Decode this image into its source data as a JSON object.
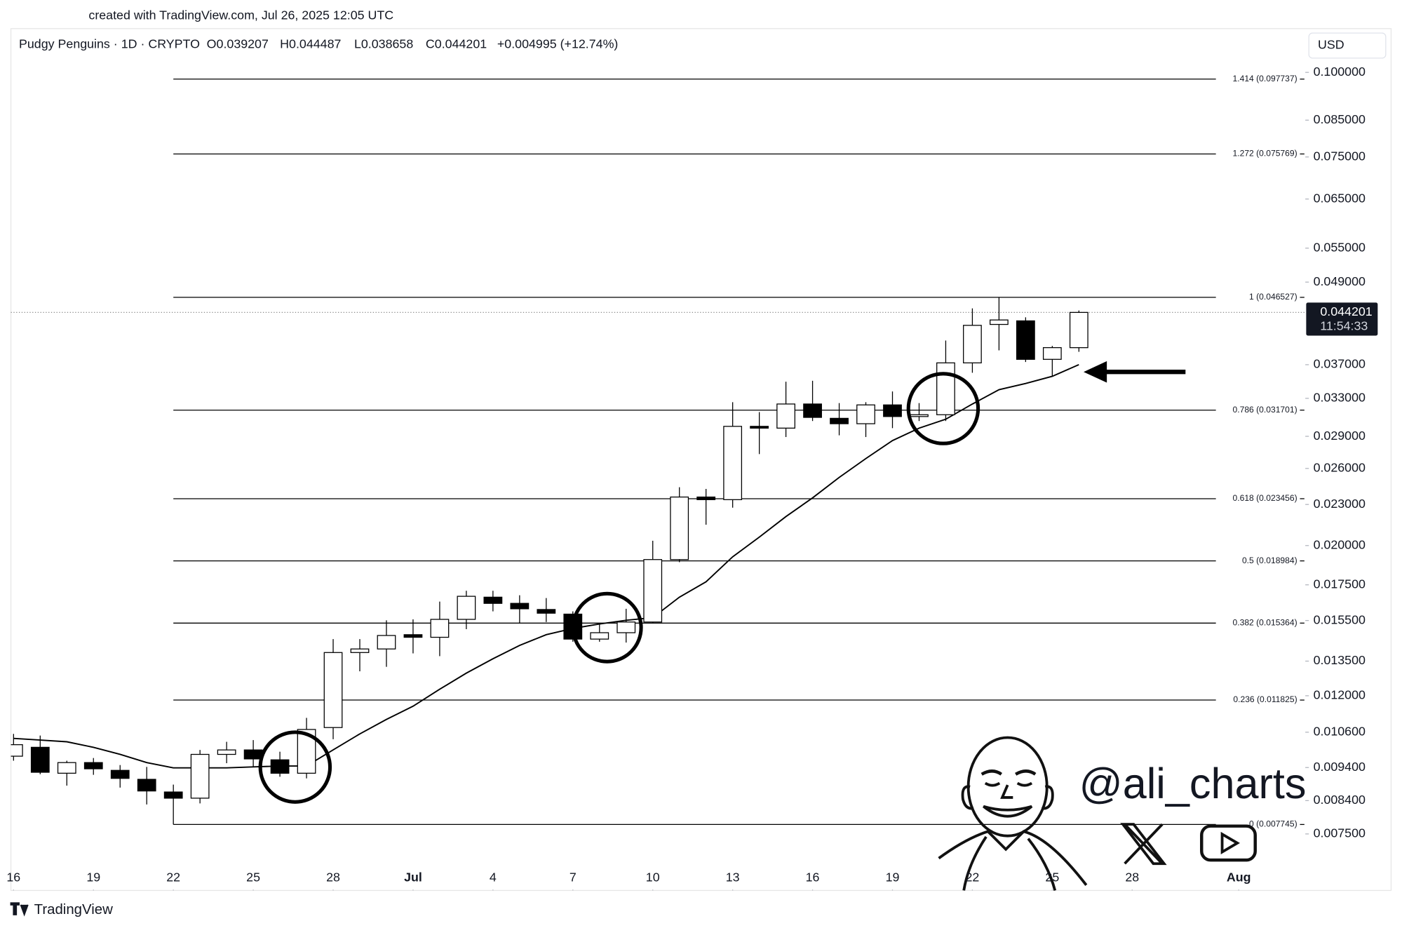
{
  "header": {
    "created": "created with TradingView.com, Jul 26, 2025 12:05 UTC"
  },
  "footer": {
    "brand": "TradingView"
  },
  "chart_data": {
    "type": "candlestick",
    "title": "Pudgy Penguins · 1D · CRYPTO",
    "ohlc_legend": [
      "O0.039207",
      "H0.044487",
      "L0.038658",
      "C0.044201",
      "+0.004995 (+12.74%)"
    ],
    "currency": "USD",
    "x": [
      0,
      1,
      2,
      3,
      4,
      5,
      6,
      7,
      8,
      9,
      10,
      11,
      12,
      13,
      14,
      15,
      16,
      17,
      18,
      19,
      20,
      21,
      22,
      23,
      24,
      25,
      26,
      27,
      28,
      29,
      30,
      31,
      32,
      33,
      34,
      35,
      36,
      37,
      38,
      39,
      40
    ],
    "open": [
      0.00977,
      0.01007,
      0.00922,
      0.00956,
      0.00931,
      0.00903,
      0.00865,
      0.00847,
      0.00983,
      0.00998,
      0.00965,
      0.00922,
      0.01077,
      0.0139,
      0.01407,
      0.01477,
      0.01464,
      0.01556,
      0.01678,
      0.01643,
      0.01609,
      0.01584,
      0.01455,
      0.01487,
      0.01542,
      0.01907,
      0.02359,
      0.02338,
      0.03,
      0.02982,
      0.03237,
      0.03083,
      0.03027,
      0.03227,
      0.03102,
      0.03121,
      0.03723,
      0.04243,
      0.04295,
      0.03768,
      0.039207
    ],
    "high": [
      0.01054,
      0.01048,
      0.00962,
      0.00971,
      0.00948,
      0.00942,
      0.00887,
      0.00998,
      0.01026,
      0.01032,
      0.00992,
      0.01113,
      0.01455,
      0.01455,
      0.01551,
      0.01556,
      0.01653,
      0.01715,
      0.01715,
      0.01689,
      0.01673,
      0.01599,
      0.01537,
      0.01613,
      0.02033,
      0.02439,
      0.02425,
      0.03257,
      0.03149,
      0.03492,
      0.03503,
      0.03247,
      0.03257,
      0.03378,
      0.03247,
      0.04017,
      0.04481,
      0.04653,
      0.04347,
      0.03944,
      0.044487
    ],
    "low": [
      0.00962,
      0.00919,
      0.00884,
      0.00917,
      0.00878,
      0.00829,
      0.007745,
      0.00832,
      0.00954,
      0.00942,
      0.00911,
      0.00906,
      0.01035,
      0.01304,
      0.01324,
      0.01386,
      0.01373,
      0.01505,
      0.01599,
      0.01537,
      0.01542,
      0.01442,
      0.01442,
      0.01438,
      0.01537,
      0.0189,
      0.02147,
      0.02275,
      0.0273,
      0.02893,
      0.03055,
      0.0291,
      0.02893,
      0.02982,
      0.03055,
      0.03055,
      0.036,
      0.03885,
      0.03734,
      0.03557,
      0.038658
    ],
    "close": [
      0.01016,
      0.00925,
      0.00956,
      0.00936,
      0.00906,
      0.00868,
      0.00847,
      0.00983,
      0.00998,
      0.00968,
      0.00922,
      0.0107,
      0.0139,
      0.01407,
      0.01473,
      0.01464,
      0.01556,
      0.01683,
      0.01643,
      0.01613,
      0.01589,
      0.01455,
      0.01487,
      0.01542,
      0.01907,
      0.02359,
      0.02338,
      0.03,
      0.02982,
      0.03237,
      0.03093,
      0.03027,
      0.03227,
      0.03102,
      0.03121,
      0.03723,
      0.0423,
      0.04308,
      0.03768,
      0.03921,
      0.044201
    ],
    "up_color": "#ffffff",
    "down_color": "#000000",
    "wick_color": "#000000",
    "ma": {
      "color": "#000000",
      "values": [
        0.01038,
        0.01032,
        0.01026,
        0.01007,
        0.00983,
        0.00956,
        0.00939,
        0.00939,
        0.00939,
        0.00942,
        0.00945,
        0.00945,
        0.00998,
        0.01054,
        0.01107,
        0.01158,
        0.01227,
        0.01296,
        0.01361,
        0.01424,
        0.01477,
        0.01509,
        0.01532,
        0.01551,
        0.01565,
        0.01678,
        0.01768,
        0.01925,
        0.02058,
        0.02207,
        0.02352,
        0.02522,
        0.02689,
        0.02858,
        0.02982,
        0.03074,
        0.03237,
        0.03398,
        0.03471,
        0.03557,
        0.037
      ]
    },
    "fib_levels": [
      {
        "value": 0.097737,
        "label": "1.414 (0.097737)"
      },
      {
        "value": 0.075769,
        "label": "1.272 (0.075769)"
      },
      {
        "value": 0.046527,
        "label": "1 (0.046527)"
      },
      {
        "value": 0.031701,
        "label": "0.786 (0.031701)"
      },
      {
        "value": 0.023456,
        "label": "0.618 (0.023456)"
      },
      {
        "value": 0.018984,
        "label": "0.5 (0.018984)"
      },
      {
        "value": 0.015364,
        "label": "0.382 (0.015364)"
      },
      {
        "value": 0.011825,
        "label": "0.236 (0.011825)"
      },
      {
        "value": 0.007745,
        "label": "0 (0.007745)"
      }
    ],
    "last_price": 0.044201,
    "countdown": "11:54:33",
    "xlim": [
      -0.1,
      48.5
    ],
    "xticks": [
      {
        "value": 0,
        "label": "16"
      },
      {
        "value": 3,
        "label": "19"
      },
      {
        "value": 6,
        "label": "22"
      },
      {
        "value": 9,
        "label": "25"
      },
      {
        "value": 12,
        "label": "28"
      },
      {
        "value": 15,
        "label": "Jul"
      },
      {
        "value": 18,
        "label": "4"
      },
      {
        "value": 21,
        "label": "7"
      },
      {
        "value": 24,
        "label": "10"
      },
      {
        "value": 27,
        "label": "13"
      },
      {
        "value": 30,
        "label": "16"
      },
      {
        "value": 33,
        "label": "19"
      },
      {
        "value": 36,
        "label": "22"
      },
      {
        "value": 39,
        "label": "25"
      },
      {
        "value": 42,
        "label": "28"
      },
      {
        "value": 46,
        "label": "Aug"
      }
    ],
    "ylim": [
      0.0068,
      0.115
    ],
    "log_scale": true,
    "yticks": [
      {
        "value": 0.1,
        "label": "0.100000"
      },
      {
        "value": 0.085,
        "label": "0.085000"
      },
      {
        "value": 0.075,
        "label": "0.075000"
      },
      {
        "value": 0.065,
        "label": "0.065000"
      },
      {
        "value": 0.055,
        "label": "0.055000"
      },
      {
        "value": 0.049,
        "label": "0.049000"
      },
      {
        "value": 0.037,
        "label": "0.037000"
      },
      {
        "value": 0.033,
        "label": "0.033000"
      },
      {
        "value": 0.029,
        "label": "0.029000"
      },
      {
        "value": 0.026,
        "label": "0.026000"
      },
      {
        "value": 0.023,
        "label": "0.023000"
      },
      {
        "value": 0.02,
        "label": "0.020000"
      },
      {
        "value": 0.0175,
        "label": "0.017500"
      },
      {
        "value": 0.0155,
        "label": "0.015500"
      },
      {
        "value": 0.0135,
        "label": "0.013500"
      },
      {
        "value": 0.012,
        "label": "0.012000"
      },
      {
        "value": 0.0106,
        "label": "0.010600"
      },
      {
        "value": 0.0094,
        "label": "0.009400"
      },
      {
        "value": 0.0084,
        "label": "0.008400"
      },
      {
        "value": 0.0075,
        "label": "0.007500"
      }
    ],
    "watermark": "@ali_charts"
  }
}
